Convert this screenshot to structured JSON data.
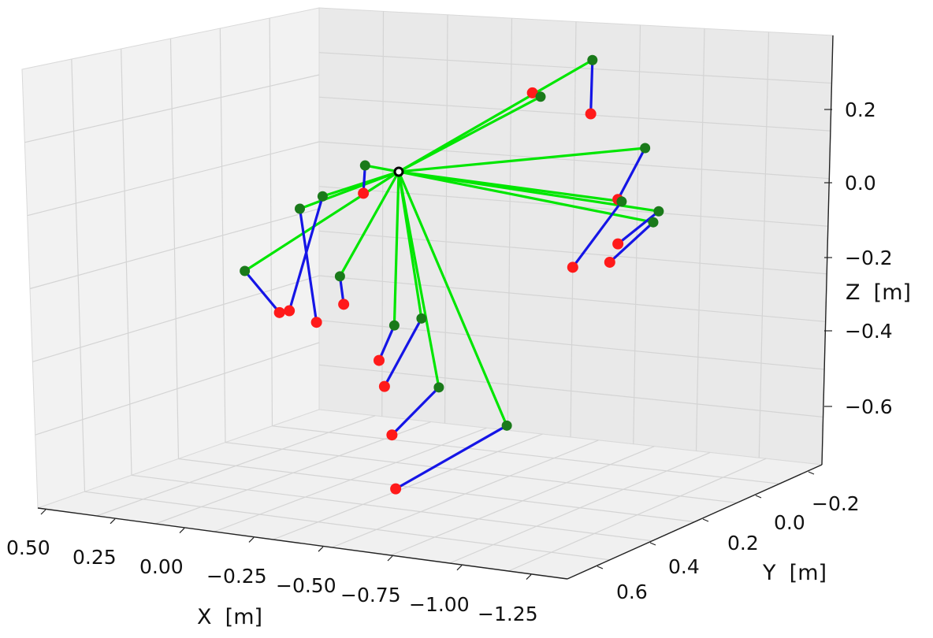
{
  "chart_data": {
    "type": "scatter",
    "projection": "3d",
    "title": "",
    "xlabel": "X  [m]",
    "ylabel": "Y  [m]",
    "zlabel": "Z  [m]",
    "x_ticks": [
      "0.50",
      "0.25",
      "0.00",
      "−0.25",
      "−0.50",
      "−0.75",
      "−1.00",
      "−1.25"
    ],
    "y_ticks": [
      "−0.2",
      "0.0",
      "0.2",
      "0.4",
      "0.6"
    ],
    "z_ticks": [
      "0.2",
      "0.0",
      "−0.2",
      "−0.4",
      "−0.6"
    ],
    "grid": true,
    "center_point": {
      "x": -0.28,
      "y": 0.35,
      "z": 0.0,
      "marker": "hollow-circle"
    },
    "series": [
      {
        "color": "#00e600",
        "style": "line"
      },
      {
        "color": "#1515e6",
        "style": "line"
      },
      {
        "color": "#1a7a1a",
        "style": "point"
      },
      {
        "color": "#ff1a1a",
        "style": "point"
      }
    ],
    "segments": [
      {
        "green": {
          "x": -0.92,
          "y": 0.25,
          "z": 0.28
        },
        "red": {
          "x": -0.95,
          "y": 0.3,
          "z": 0.15
        }
      },
      {
        "green": {
          "x": -0.78,
          "y": 0.32,
          "z": 0.2
        },
        "red": {
          "x": -0.75,
          "y": 0.32,
          "z": 0.21
        }
      },
      {
        "green": {
          "x": -1.15,
          "y": 0.3,
          "z": 0.06
        },
        "red": {
          "x": -1.05,
          "y": 0.3,
          "z": -0.08
        }
      },
      {
        "green": {
          "x": -1.1,
          "y": 0.35,
          "z": -0.07
        },
        "red": {
          "x": -0.92,
          "y": 0.35,
          "z": -0.25
        }
      },
      {
        "green": {
          "x": -1.2,
          "y": 0.3,
          "z": -0.11
        },
        "red": {
          "x": -1.05,
          "y": 0.3,
          "z": -0.2
        }
      },
      {
        "green": {
          "x": -1.18,
          "y": 0.3,
          "z": -0.14
        },
        "red": {
          "x": -1.02,
          "y": 0.3,
          "z": -0.25
        }
      },
      {
        "green": {
          "x": -0.12,
          "y": 0.3,
          "z": 0.0
        },
        "red": {
          "x": -0.15,
          "y": 0.35,
          "z": -0.06
        }
      },
      {
        "green": {
          "x": 0.0,
          "y": 0.35,
          "z": -0.07
        },
        "red": {
          "x": 0.05,
          "y": 0.45,
          "z": -0.35
        }
      },
      {
        "green": {
          "x": 0.12,
          "y": 0.3,
          "z": -0.12
        },
        "red": {
          "x": -0.05,
          "y": 0.45,
          "z": -0.38
        }
      },
      {
        "green": {
          "x": 0.25,
          "y": 0.4,
          "z": -0.26
        },
        "red": {
          "x": 0.05,
          "y": 0.5,
          "z": -0.34
        }
      },
      {
        "green": {
          "x": -0.1,
          "y": 0.4,
          "z": -0.27
        },
        "red": {
          "x": -0.15,
          "y": 0.45,
          "z": -0.33
        }
      },
      {
        "green": {
          "x": -0.3,
          "y": 0.4,
          "z": -0.4
        },
        "red": {
          "x": -0.28,
          "y": 0.45,
          "z": -0.48
        }
      },
      {
        "green": {
          "x": -0.4,
          "y": 0.4,
          "z": -0.38
        },
        "red": {
          "x": -0.3,
          "y": 0.45,
          "z": -0.55
        }
      },
      {
        "green": {
          "x": -0.5,
          "y": 0.45,
          "z": -0.55
        },
        "red": {
          "x": -0.4,
          "y": 0.55,
          "z": -0.65
        }
      },
      {
        "green": {
          "x": -0.75,
          "y": 0.45,
          "z": -0.65
        },
        "red": {
          "x": -0.45,
          "y": 0.6,
          "z": -0.78
        }
      }
    ]
  }
}
